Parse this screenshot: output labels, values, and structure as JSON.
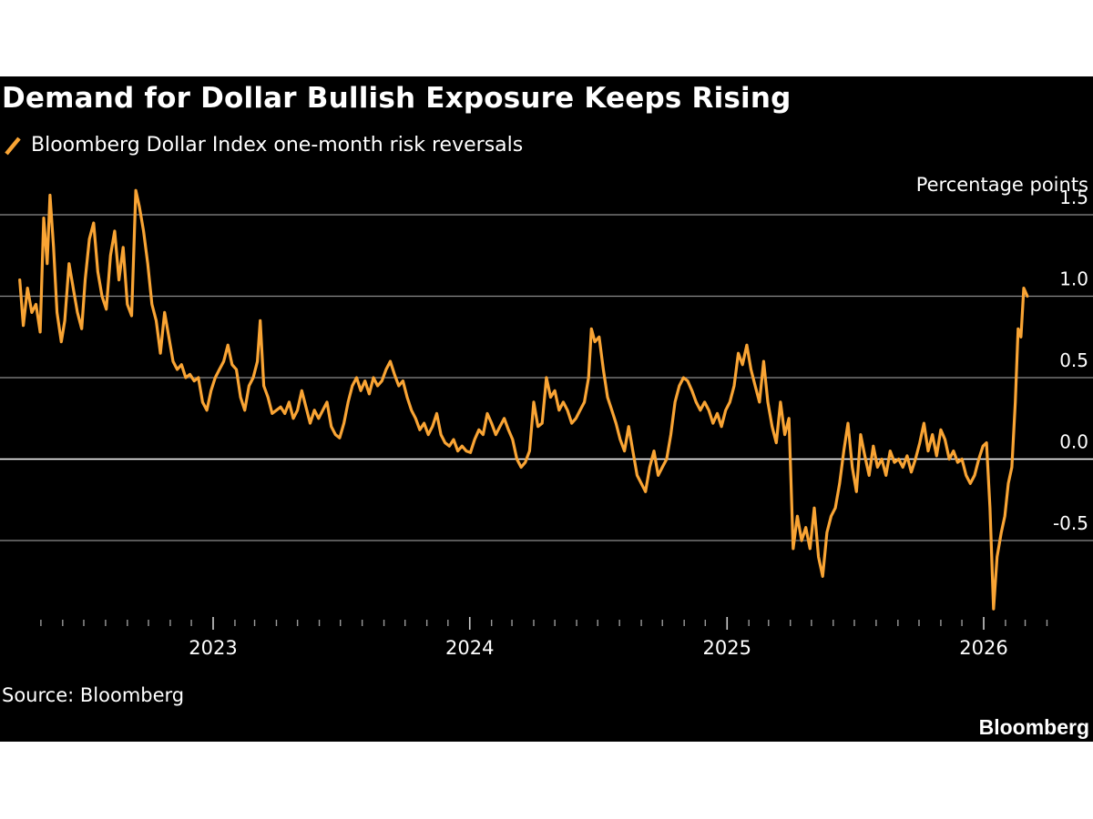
{
  "title": "Demand for Dollar Bullish Exposure Keeps Rising",
  "source": "Source: Bloomberg",
  "brand": "Bloomberg",
  "colors": {
    "background": "#000000",
    "line": "#f9a434",
    "grid": "#8c8c8c",
    "zero": "#ffffff",
    "text": "#ffffff"
  },
  "chart_data": {
    "type": "line",
    "title": "Demand for Dollar Bullish Exposure Keeps Rising",
    "ylabel": "Percentage points",
    "xlabel": "",
    "ylim": [
      -0.95,
      1.6
    ],
    "yticks": [
      1.5,
      1.0,
      0.5,
      0.0,
      -0.5
    ],
    "ytick_labels": [
      "1.5",
      "1.0",
      "0.5",
      "0.0",
      "-0.5"
    ],
    "xlim": [
      "2022-04-01",
      "2026-04-01"
    ],
    "xticks": [
      "2023-01-01",
      "2024-01-01",
      "2025-01-01",
      "2026-01-01"
    ],
    "xtick_labels": [
      "2023",
      "2024",
      "2025",
      "2026"
    ],
    "grid": true,
    "legend_position": "top-left",
    "series": [
      {
        "name": "Bloomberg Dollar Index one-month risk reversals",
        "color": "#f9a434",
        "points": [
          [
            "2022-04-01",
            1.1
          ],
          [
            "2022-04-06",
            0.82
          ],
          [
            "2022-04-12",
            1.05
          ],
          [
            "2022-04-18",
            0.9
          ],
          [
            "2022-04-24",
            0.95
          ],
          [
            "2022-04-30",
            0.78
          ],
          [
            "2022-05-05",
            1.48
          ],
          [
            "2022-05-10",
            1.2
          ],
          [
            "2022-05-14",
            1.62
          ],
          [
            "2022-05-19",
            1.3
          ],
          [
            "2022-05-24",
            0.9
          ],
          [
            "2022-05-30",
            0.72
          ],
          [
            "2022-06-04",
            0.85
          ],
          [
            "2022-06-10",
            1.2
          ],
          [
            "2022-06-16",
            1.05
          ],
          [
            "2022-06-22",
            0.9
          ],
          [
            "2022-06-28",
            0.8
          ],
          [
            "2022-07-03",
            1.1
          ],
          [
            "2022-07-09",
            1.35
          ],
          [
            "2022-07-15",
            1.45
          ],
          [
            "2022-07-21",
            1.15
          ],
          [
            "2022-07-27",
            1.0
          ],
          [
            "2022-08-02",
            0.92
          ],
          [
            "2022-08-08",
            1.25
          ],
          [
            "2022-08-14",
            1.4
          ],
          [
            "2022-08-20",
            1.1
          ],
          [
            "2022-08-26",
            1.3
          ],
          [
            "2022-09-01",
            0.95
          ],
          [
            "2022-09-07",
            0.88
          ],
          [
            "2022-09-13",
            1.65
          ],
          [
            "2022-09-18",
            1.55
          ],
          [
            "2022-09-24",
            1.4
          ],
          [
            "2022-09-30",
            1.2
          ],
          [
            "2022-10-06",
            0.95
          ],
          [
            "2022-10-12",
            0.85
          ],
          [
            "2022-10-18",
            0.65
          ],
          [
            "2022-10-24",
            0.9
          ],
          [
            "2022-10-30",
            0.75
          ],
          [
            "2022-11-05",
            0.6
          ],
          [
            "2022-11-11",
            0.55
          ],
          [
            "2022-11-17",
            0.58
          ],
          [
            "2022-11-23",
            0.5
          ],
          [
            "2022-11-29",
            0.52
          ],
          [
            "2022-12-05",
            0.48
          ],
          [
            "2022-12-11",
            0.5
          ],
          [
            "2022-12-17",
            0.35
          ],
          [
            "2022-12-23",
            0.3
          ],
          [
            "2022-12-29",
            0.42
          ],
          [
            "2023-01-04",
            0.5
          ],
          [
            "2023-01-10",
            0.55
          ],
          [
            "2023-01-16",
            0.6
          ],
          [
            "2023-01-22",
            0.7
          ],
          [
            "2023-01-28",
            0.58
          ],
          [
            "2023-02-03",
            0.55
          ],
          [
            "2023-02-09",
            0.38
          ],
          [
            "2023-02-15",
            0.3
          ],
          [
            "2023-02-21",
            0.45
          ],
          [
            "2023-02-27",
            0.5
          ],
          [
            "2023-03-05",
            0.6
          ],
          [
            "2023-03-09",
            0.85
          ],
          [
            "2023-03-14",
            0.45
          ],
          [
            "2023-03-20",
            0.38
          ],
          [
            "2023-03-26",
            0.28
          ],
          [
            "2023-04-01",
            0.3
          ],
          [
            "2023-04-07",
            0.32
          ],
          [
            "2023-04-13",
            0.28
          ],
          [
            "2023-04-19",
            0.35
          ],
          [
            "2023-04-25",
            0.25
          ],
          [
            "2023-05-01",
            0.3
          ],
          [
            "2023-05-07",
            0.42
          ],
          [
            "2023-05-13",
            0.32
          ],
          [
            "2023-05-19",
            0.22
          ],
          [
            "2023-05-25",
            0.3
          ],
          [
            "2023-05-31",
            0.25
          ],
          [
            "2023-06-06",
            0.3
          ],
          [
            "2023-06-12",
            0.35
          ],
          [
            "2023-06-18",
            0.2
          ],
          [
            "2023-06-24",
            0.15
          ],
          [
            "2023-06-30",
            0.13
          ],
          [
            "2023-07-06",
            0.22
          ],
          [
            "2023-07-12",
            0.35
          ],
          [
            "2023-07-18",
            0.45
          ],
          [
            "2023-07-24",
            0.5
          ],
          [
            "2023-07-30",
            0.42
          ],
          [
            "2023-08-05",
            0.48
          ],
          [
            "2023-08-11",
            0.4
          ],
          [
            "2023-08-17",
            0.5
          ],
          [
            "2023-08-23",
            0.45
          ],
          [
            "2023-08-29",
            0.48
          ],
          [
            "2023-09-04",
            0.55
          ],
          [
            "2023-09-10",
            0.6
          ],
          [
            "2023-09-16",
            0.52
          ],
          [
            "2023-09-22",
            0.45
          ],
          [
            "2023-09-28",
            0.48
          ],
          [
            "2023-10-04",
            0.38
          ],
          [
            "2023-10-10",
            0.3
          ],
          [
            "2023-10-16",
            0.25
          ],
          [
            "2023-10-22",
            0.18
          ],
          [
            "2023-10-28",
            0.22
          ],
          [
            "2023-11-03",
            0.15
          ],
          [
            "2023-11-09",
            0.2
          ],
          [
            "2023-11-15",
            0.28
          ],
          [
            "2023-11-21",
            0.15
          ],
          [
            "2023-11-27",
            0.1
          ],
          [
            "2023-12-03",
            0.08
          ],
          [
            "2023-12-09",
            0.12
          ],
          [
            "2023-12-15",
            0.05
          ],
          [
            "2023-12-21",
            0.08
          ],
          [
            "2023-12-27",
            0.05
          ],
          [
            "2024-01-02",
            0.04
          ],
          [
            "2024-01-08",
            0.12
          ],
          [
            "2024-01-14",
            0.18
          ],
          [
            "2024-01-20",
            0.15
          ],
          [
            "2024-01-26",
            0.28
          ],
          [
            "2024-02-01",
            0.22
          ],
          [
            "2024-02-07",
            0.15
          ],
          [
            "2024-02-13",
            0.2
          ],
          [
            "2024-02-19",
            0.25
          ],
          [
            "2024-02-25",
            0.18
          ],
          [
            "2024-03-02",
            0.12
          ],
          [
            "2024-03-08",
            0.0
          ],
          [
            "2024-03-14",
            -0.05
          ],
          [
            "2024-03-20",
            -0.02
          ],
          [
            "2024-03-26",
            0.05
          ],
          [
            "2024-04-01",
            0.35
          ],
          [
            "2024-04-07",
            0.2
          ],
          [
            "2024-04-13",
            0.22
          ],
          [
            "2024-04-19",
            0.5
          ],
          [
            "2024-04-25",
            0.38
          ],
          [
            "2024-05-01",
            0.42
          ],
          [
            "2024-05-07",
            0.3
          ],
          [
            "2024-05-13",
            0.35
          ],
          [
            "2024-05-19",
            0.3
          ],
          [
            "2024-05-25",
            0.22
          ],
          [
            "2024-05-31",
            0.25
          ],
          [
            "2024-06-06",
            0.3
          ],
          [
            "2024-06-12",
            0.35
          ],
          [
            "2024-06-18",
            0.5
          ],
          [
            "2024-06-22",
            0.8
          ],
          [
            "2024-06-27",
            0.72
          ],
          [
            "2024-07-03",
            0.75
          ],
          [
            "2024-07-09",
            0.55
          ],
          [
            "2024-07-15",
            0.38
          ],
          [
            "2024-07-21",
            0.3
          ],
          [
            "2024-07-27",
            0.22
          ],
          [
            "2024-08-02",
            0.12
          ],
          [
            "2024-08-08",
            0.05
          ],
          [
            "2024-08-14",
            0.2
          ],
          [
            "2024-08-20",
            0.05
          ],
          [
            "2024-08-26",
            -0.1
          ],
          [
            "2024-09-01",
            -0.15
          ],
          [
            "2024-09-07",
            -0.2
          ],
          [
            "2024-09-13",
            -0.05
          ],
          [
            "2024-09-19",
            0.05
          ],
          [
            "2024-09-25",
            -0.1
          ],
          [
            "2024-10-01",
            -0.05
          ],
          [
            "2024-10-07",
            0.0
          ],
          [
            "2024-10-13",
            0.15
          ],
          [
            "2024-10-19",
            0.35
          ],
          [
            "2024-10-25",
            0.45
          ],
          [
            "2024-10-31",
            0.5
          ],
          [
            "2024-11-06",
            0.48
          ],
          [
            "2024-11-12",
            0.42
          ],
          [
            "2024-11-18",
            0.35
          ],
          [
            "2024-11-24",
            0.3
          ],
          [
            "2024-11-30",
            0.35
          ],
          [
            "2024-12-06",
            0.3
          ],
          [
            "2024-12-12",
            0.22
          ],
          [
            "2024-12-18",
            0.28
          ],
          [
            "2024-12-24",
            0.2
          ],
          [
            "2024-12-30",
            0.3
          ],
          [
            "2025-01-05",
            0.35
          ],
          [
            "2025-01-11",
            0.45
          ],
          [
            "2025-01-17",
            0.65
          ],
          [
            "2025-01-23",
            0.58
          ],
          [
            "2025-01-29",
            0.7
          ],
          [
            "2025-02-04",
            0.55
          ],
          [
            "2025-02-10",
            0.45
          ],
          [
            "2025-02-16",
            0.35
          ],
          [
            "2025-02-22",
            0.6
          ],
          [
            "2025-02-28",
            0.35
          ],
          [
            "2025-03-06",
            0.2
          ],
          [
            "2025-03-12",
            0.1
          ],
          [
            "2025-03-18",
            0.35
          ],
          [
            "2025-03-24",
            0.15
          ],
          [
            "2025-03-30",
            0.25
          ],
          [
            "2025-04-05",
            -0.55
          ],
          [
            "2025-04-11",
            -0.35
          ],
          [
            "2025-04-17",
            -0.5
          ],
          [
            "2025-04-23",
            -0.42
          ],
          [
            "2025-04-29",
            -0.55
          ],
          [
            "2025-05-05",
            -0.3
          ],
          [
            "2025-05-11",
            -0.6
          ],
          [
            "2025-05-17",
            -0.72
          ],
          [
            "2025-05-23",
            -0.45
          ],
          [
            "2025-05-29",
            -0.35
          ],
          [
            "2025-06-04",
            -0.3
          ],
          [
            "2025-06-10",
            -0.15
          ],
          [
            "2025-06-16",
            0.05
          ],
          [
            "2025-06-22",
            0.22
          ],
          [
            "2025-06-28",
            -0.05
          ],
          [
            "2025-07-04",
            -0.2
          ],
          [
            "2025-07-10",
            0.15
          ],
          [
            "2025-07-16",
            0.02
          ],
          [
            "2025-07-22",
            -0.1
          ],
          [
            "2025-07-28",
            0.08
          ],
          [
            "2025-08-03",
            -0.05
          ],
          [
            "2025-08-09",
            0.0
          ],
          [
            "2025-08-15",
            -0.1
          ],
          [
            "2025-08-21",
            0.05
          ],
          [
            "2025-08-27",
            -0.02
          ],
          [
            "2025-09-02",
            0.0
          ],
          [
            "2025-09-08",
            -0.05
          ],
          [
            "2025-09-14",
            0.02
          ],
          [
            "2025-09-20",
            -0.08
          ],
          [
            "2025-09-26",
            0.0
          ],
          [
            "2025-10-02",
            0.1
          ],
          [
            "2025-10-08",
            0.22
          ],
          [
            "2025-10-14",
            0.05
          ],
          [
            "2025-10-20",
            0.15
          ],
          [
            "2025-10-26",
            0.02
          ],
          [
            "2025-11-01",
            0.18
          ],
          [
            "2025-11-07",
            0.12
          ],
          [
            "2025-11-13",
            0.0
          ],
          [
            "2025-11-19",
            0.05
          ],
          [
            "2025-11-25",
            -0.02
          ],
          [
            "2025-12-01",
            0.0
          ],
          [
            "2025-12-07",
            -0.1
          ],
          [
            "2025-12-13",
            -0.15
          ],
          [
            "2025-12-19",
            -0.1
          ],
          [
            "2025-12-25",
            0.0
          ],
          [
            "2025-12-31",
            0.08
          ],
          [
            "2026-01-05",
            0.1
          ],
          [
            "2026-01-10",
            -0.3
          ],
          [
            "2026-01-15",
            -0.92
          ],
          [
            "2026-01-20",
            -0.6
          ],
          [
            "2026-01-26",
            -0.45
          ],
          [
            "2026-01-31",
            -0.35
          ],
          [
            "2026-02-05",
            -0.15
          ],
          [
            "2026-02-10",
            -0.05
          ],
          [
            "2026-02-15",
            0.35
          ],
          [
            "2026-02-19",
            0.8
          ],
          [
            "2026-02-23",
            0.75
          ],
          [
            "2026-02-27",
            1.05
          ],
          [
            "2026-03-04",
            1.0
          ]
        ]
      }
    ]
  }
}
